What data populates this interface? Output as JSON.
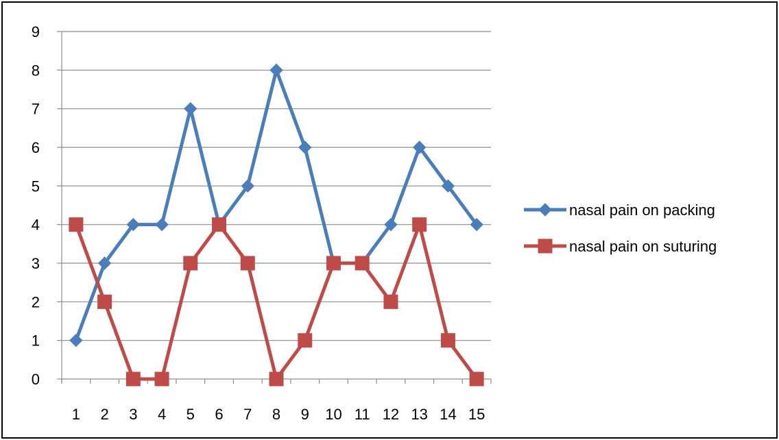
{
  "chart_data": {
    "type": "line",
    "title": "",
    "xlabel": "",
    "ylabel": "",
    "x": [
      1,
      2,
      3,
      4,
      5,
      6,
      7,
      8,
      9,
      10,
      11,
      12,
      13,
      14,
      15
    ],
    "ylim": [
      0,
      9
    ],
    "y_ticks": [
      0,
      1,
      2,
      3,
      4,
      5,
      6,
      7,
      8,
      9
    ],
    "grid": "horizontal",
    "legend_position": "right",
    "series": [
      {
        "name": "nasal pain on packing",
        "values": [
          1,
          3,
          4,
          4,
          7,
          4,
          5,
          8,
          6,
          3,
          3,
          4,
          6,
          5,
          4
        ],
        "color": "#4a7ebb",
        "marker": "diamond"
      },
      {
        "name": "nasal pain on suturing",
        "values": [
          4,
          2,
          0,
          0,
          3,
          4,
          3,
          0,
          1,
          3,
          3,
          2,
          4,
          1,
          0
        ],
        "color": "#be4b48",
        "marker": "square"
      }
    ]
  }
}
